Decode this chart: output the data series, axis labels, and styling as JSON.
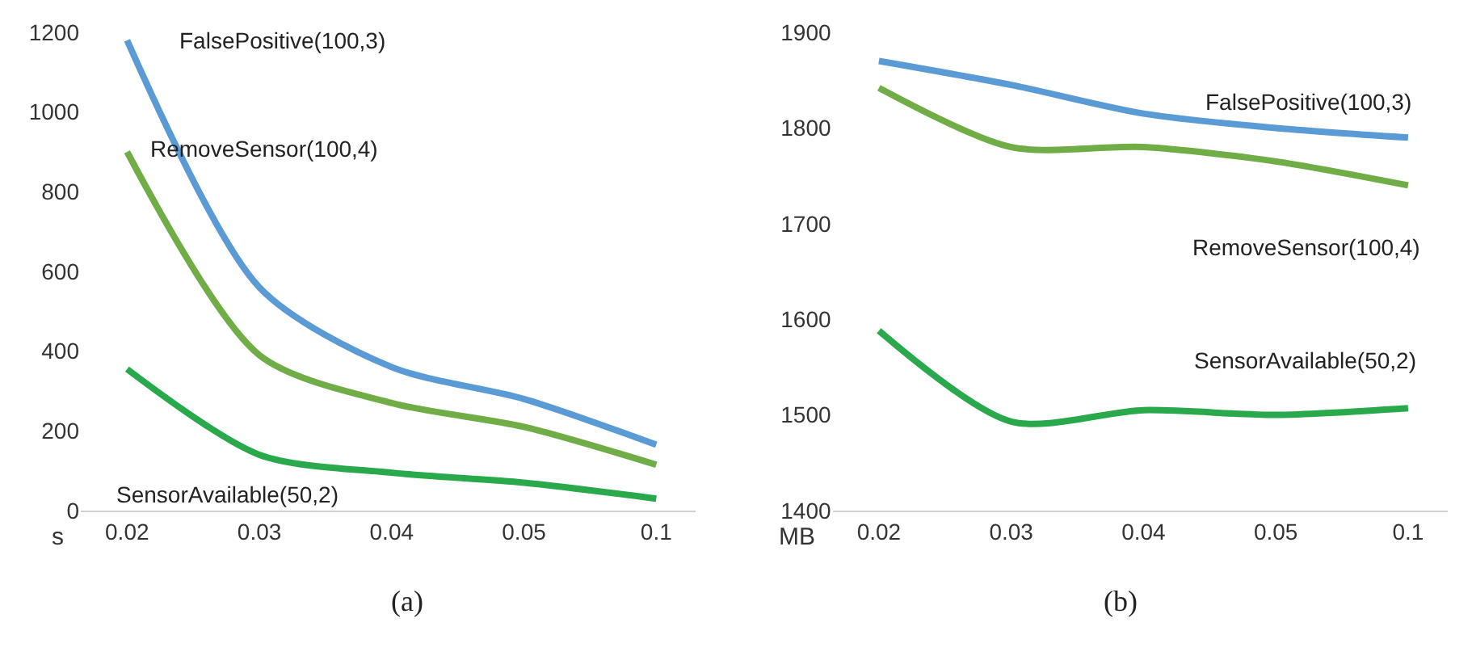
{
  "chart_data": [
    {
      "type": "line",
      "title": "(a)",
      "ylabel": "s",
      "categories": [
        "0.02",
        "0.03",
        "0.04",
        "0.05",
        "0.1"
      ],
      "ylim": [
        0,
        1200
      ],
      "yticks": [
        0,
        200,
        400,
        600,
        800,
        1000,
        1200
      ],
      "marker": "none",
      "line_style": "solid",
      "series": [
        {
          "name": "FalsePositive(100,3)",
          "color": "#5b9bd5",
          "values": [
            1180,
            560,
            360,
            280,
            165
          ]
        },
        {
          "name": "RemoveSensor(100,4)",
          "color": "#70ad47",
          "values": [
            900,
            390,
            270,
            210,
            115
          ]
        },
        {
          "name": "SensorAvailable(50,2)",
          "color": "#2aa84c",
          "values": [
            355,
            140,
            95,
            70,
            30
          ]
        }
      ]
    },
    {
      "type": "line",
      "title": "(b)",
      "ylabel": "MB",
      "categories": [
        "0.02",
        "0.03",
        "0.04",
        "0.05",
        "0.1"
      ],
      "ylim": [
        1400,
        1900
      ],
      "yticks": [
        1400,
        1500,
        1600,
        1700,
        1800,
        1900
      ],
      "marker": "none",
      "line_style": "solid",
      "series": [
        {
          "name": "FalsePositive(100,3)",
          "color": "#5b9bd5",
          "values": [
            1870,
            1845,
            1815,
            1800,
            1790
          ]
        },
        {
          "name": "RemoveSensor(100,4)",
          "color": "#70ad47",
          "values": [
            1842,
            1780,
            1780,
            1765,
            1740
          ]
        },
        {
          "name": "SensorAvailable(50,2)",
          "color": "#2aa84c",
          "values": [
            1588,
            1493,
            1505,
            1500,
            1507
          ]
        }
      ]
    }
  ]
}
